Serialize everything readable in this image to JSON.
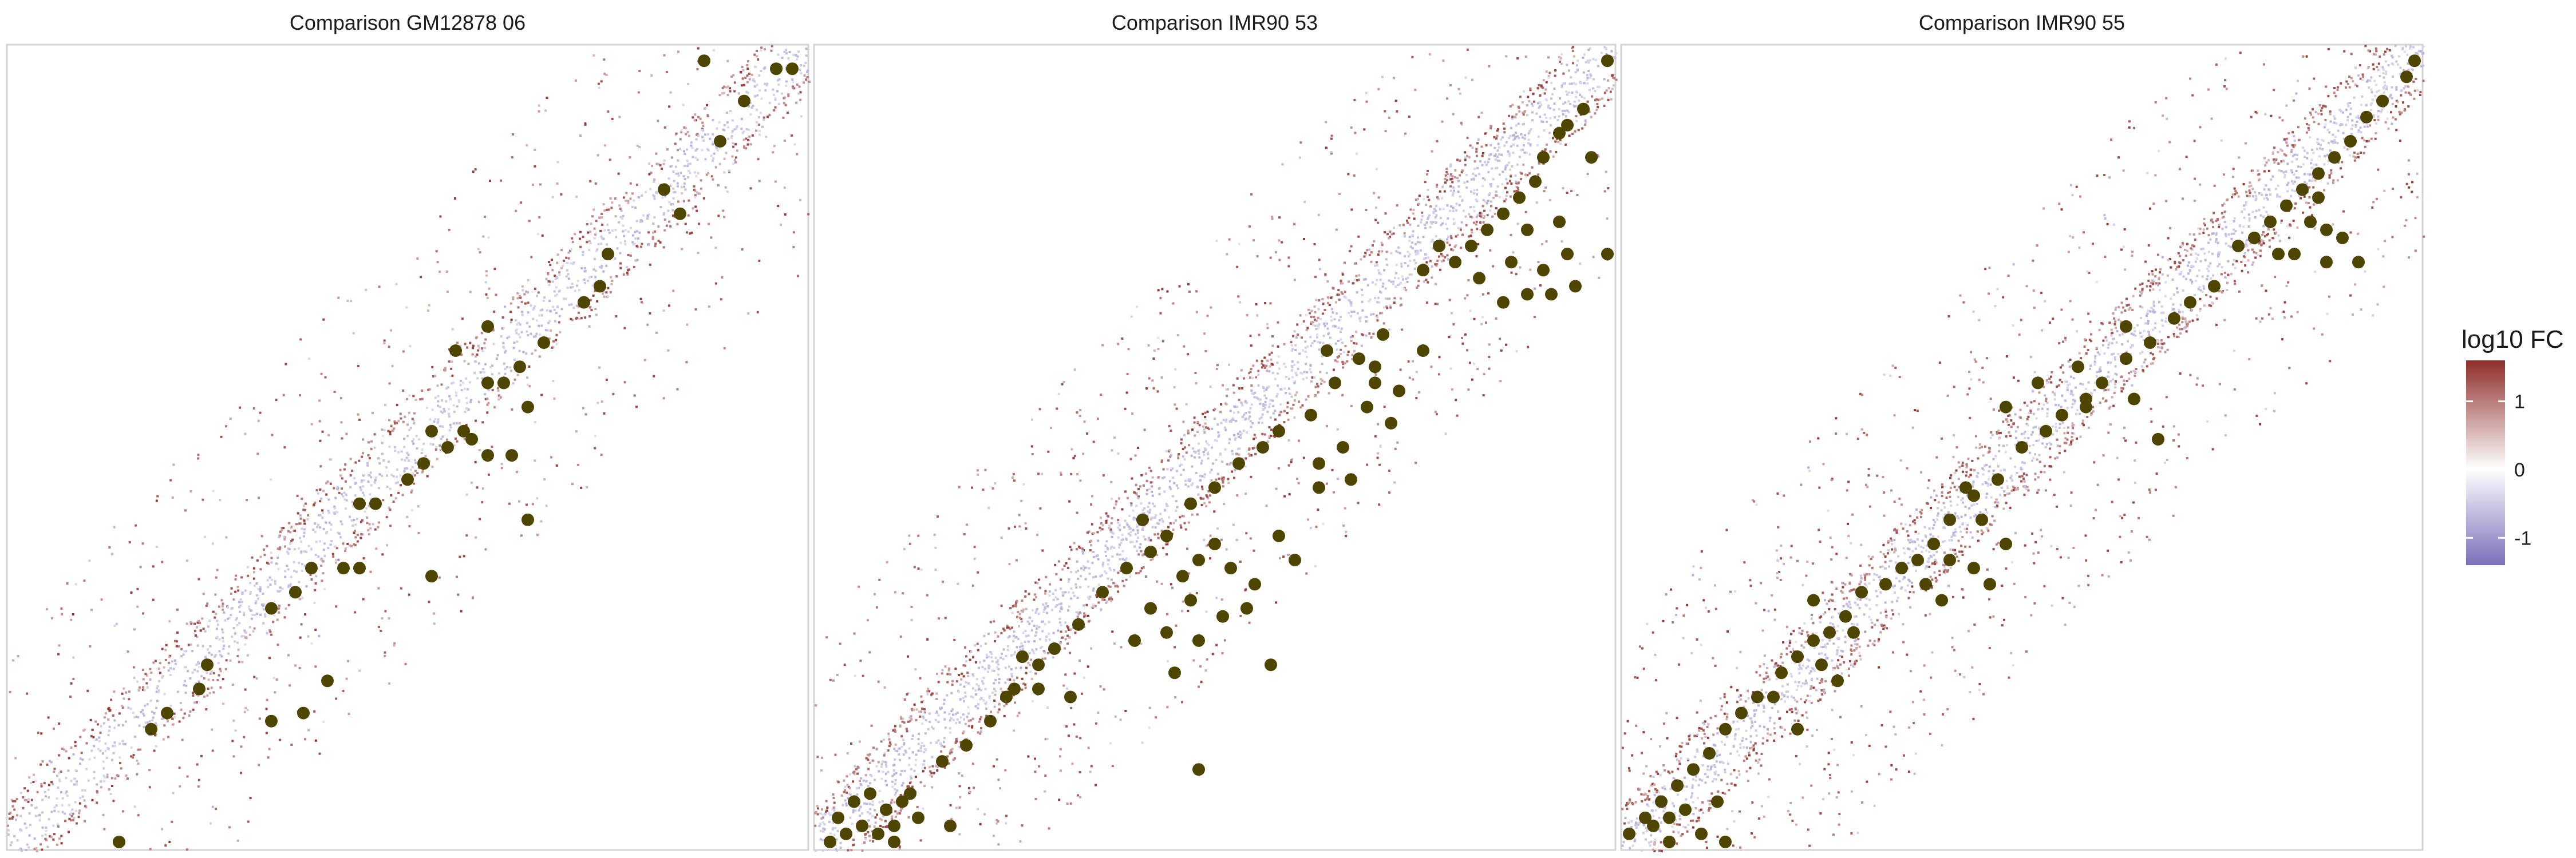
{
  "colors": {
    "low": "#7b6fb8",
    "mid": "#ffffff",
    "high": "#8e2e2a",
    "points": "#4d4500",
    "panel_border": "#d4d4d4"
  },
  "legend": {
    "title": "log10 FC",
    "ticks": [
      {
        "value": 1,
        "label": "1"
      },
      {
        "value": 0,
        "label": "0"
      },
      {
        "value": -1,
        "label": "-1"
      }
    ],
    "range": [
      -1.4,
      1.6
    ]
  },
  "chart_data": [
    {
      "type": "heatmap",
      "title": "Comparison GM12878 06",
      "grid": false,
      "fill_scale": "log10 FC, diverging blue-white-red",
      "points": [
        [
          0.87,
          0.98
        ],
        [
          0.96,
          0.97
        ],
        [
          0.92,
          0.93
        ],
        [
          0.98,
          0.97
        ],
        [
          0.89,
          0.88
        ],
        [
          0.82,
          0.82
        ],
        [
          0.84,
          0.79
        ],
        [
          0.75,
          0.74
        ],
        [
          0.74,
          0.7
        ],
        [
          0.72,
          0.68
        ],
        [
          0.67,
          0.63
        ],
        [
          0.64,
          0.6
        ],
        [
          0.62,
          0.58
        ],
        [
          0.65,
          0.55
        ],
        [
          0.6,
          0.58
        ],
        [
          0.57,
          0.52
        ],
        [
          0.53,
          0.52
        ],
        [
          0.55,
          0.5
        ],
        [
          0.58,
          0.51
        ],
        [
          0.52,
          0.48
        ],
        [
          0.5,
          0.46
        ],
        [
          0.6,
          0.49
        ],
        [
          0.63,
          0.49
        ],
        [
          0.44,
          0.43
        ],
        [
          0.46,
          0.43
        ],
        [
          0.65,
          0.41
        ],
        [
          0.38,
          0.35
        ],
        [
          0.42,
          0.35
        ],
        [
          0.36,
          0.32
        ],
        [
          0.33,
          0.3
        ],
        [
          0.44,
          0.35
        ],
        [
          0.53,
          0.34
        ],
        [
          0.25,
          0.23
        ],
        [
          0.24,
          0.2
        ],
        [
          0.2,
          0.17
        ],
        [
          0.18,
          0.15
        ],
        [
          0.4,
          0.21
        ],
        [
          0.33,
          0.16
        ],
        [
          0.37,
          0.17
        ],
        [
          0.14,
          0.01
        ],
        [
          0.56,
          0.62
        ],
        [
          0.6,
          0.65
        ]
      ]
    },
    {
      "type": "heatmap",
      "title": "Comparison IMR90 53",
      "grid": false,
      "fill_scale": "log10 FC, diverging blue-white-red",
      "points": [
        [
          0.99,
          0.98
        ],
        [
          0.96,
          0.92
        ],
        [
          0.93,
          0.89
        ],
        [
          0.91,
          0.86
        ],
        [
          0.9,
          0.83
        ],
        [
          0.88,
          0.81
        ],
        [
          0.86,
          0.79
        ],
        [
          0.84,
          0.77
        ],
        [
          0.82,
          0.75
        ],
        [
          0.8,
          0.73
        ],
        [
          0.78,
          0.75
        ],
        [
          0.76,
          0.72
        ],
        [
          0.83,
          0.71
        ],
        [
          0.87,
          0.73
        ],
        [
          0.91,
          0.72
        ],
        [
          0.94,
          0.74
        ],
        [
          0.86,
          0.68
        ],
        [
          0.89,
          0.69
        ],
        [
          0.92,
          0.69
        ],
        [
          0.95,
          0.7
        ],
        [
          0.99,
          0.74
        ],
        [
          0.97,
          0.86
        ],
        [
          0.94,
          0.9
        ],
        [
          0.89,
          0.77
        ],
        [
          0.93,
          0.78
        ],
        [
          0.71,
          0.64
        ],
        [
          0.68,
          0.61
        ],
        [
          0.65,
          0.58
        ],
        [
          0.62,
          0.54
        ],
        [
          0.58,
          0.52
        ],
        [
          0.56,
          0.5
        ],
        [
          0.53,
          0.48
        ],
        [
          0.5,
          0.45
        ],
        [
          0.47,
          0.43
        ],
        [
          0.44,
          0.39
        ],
        [
          0.42,
          0.37
        ],
        [
          0.39,
          0.35
        ],
        [
          0.36,
          0.32
        ],
        [
          0.33,
          0.28
        ],
        [
          0.3,
          0.25
        ],
        [
          0.28,
          0.23
        ],
        [
          0.25,
          0.2
        ],
        [
          0.22,
          0.16
        ],
        [
          0.19,
          0.13
        ],
        [
          0.16,
          0.11
        ],
        [
          0.12,
          0.07
        ],
        [
          0.09,
          0.05
        ],
        [
          0.06,
          0.03
        ],
        [
          0.04,
          0.02
        ],
        [
          0.02,
          0.01
        ],
        [
          0.08,
          0.02
        ],
        [
          0.1,
          0.03
        ],
        [
          0.11,
          0.06
        ],
        [
          0.13,
          0.04
        ],
        [
          0.07,
          0.07
        ],
        [
          0.05,
          0.06
        ],
        [
          0.1,
          0.01
        ],
        [
          0.03,
          0.04
        ],
        [
          0.7,
          0.58
        ],
        [
          0.69,
          0.55
        ],
        [
          0.73,
          0.57
        ],
        [
          0.72,
          0.53
        ],
        [
          0.66,
          0.5
        ],
        [
          0.63,
          0.48
        ],
        [
          0.67,
          0.46
        ],
        [
          0.5,
          0.38
        ],
        [
          0.48,
          0.36
        ],
        [
          0.46,
          0.34
        ],
        [
          0.52,
          0.35
        ],
        [
          0.47,
          0.31
        ],
        [
          0.42,
          0.3
        ],
        [
          0.44,
          0.27
        ],
        [
          0.4,
          0.26
        ],
        [
          0.45,
          0.22
        ],
        [
          0.57,
          0.23
        ],
        [
          0.28,
          0.2
        ],
        [
          0.32,
          0.19
        ],
        [
          0.48,
          0.26
        ],
        [
          0.51,
          0.29
        ],
        [
          0.54,
          0.3
        ],
        [
          0.55,
          0.33
        ],
        [
          0.41,
          0.41
        ],
        [
          0.63,
          0.45
        ],
        [
          0.58,
          0.39
        ],
        [
          0.6,
          0.36
        ],
        [
          0.76,
          0.62
        ],
        [
          0.7,
          0.6
        ],
        [
          0.24,
          0.19
        ],
        [
          0.17,
          0.03
        ],
        [
          0.48,
          0.1
        ],
        [
          0.26,
          0.24
        ],
        [
          0.64,
          0.62
        ]
      ]
    },
    {
      "type": "heatmap",
      "title": "Comparison IMR90 55",
      "grid": false,
      "fill_scale": "log10 FC, diverging blue-white-red",
      "points": [
        [
          0.99,
          0.98
        ],
        [
          0.98,
          0.96
        ],
        [
          0.95,
          0.93
        ],
        [
          0.93,
          0.91
        ],
        [
          0.91,
          0.88
        ],
        [
          0.89,
          0.86
        ],
        [
          0.87,
          0.84
        ],
        [
          0.85,
          0.82
        ],
        [
          0.83,
          0.8
        ],
        [
          0.81,
          0.78
        ],
        [
          0.79,
          0.76
        ],
        [
          0.77,
          0.75
        ],
        [
          0.86,
          0.78
        ],
        [
          0.88,
          0.77
        ],
        [
          0.9,
          0.76
        ],
        [
          0.84,
          0.74
        ],
        [
          0.88,
          0.73
        ],
        [
          0.92,
          0.73
        ],
        [
          0.87,
          0.81
        ],
        [
          0.82,
          0.74
        ],
        [
          0.74,
          0.7
        ],
        [
          0.71,
          0.68
        ],
        [
          0.69,
          0.66
        ],
        [
          0.66,
          0.63
        ],
        [
          0.63,
          0.61
        ],
        [
          0.6,
          0.58
        ],
        [
          0.58,
          0.56
        ],
        [
          0.55,
          0.54
        ],
        [
          0.53,
          0.52
        ],
        [
          0.5,
          0.5
        ],
        [
          0.47,
          0.46
        ],
        [
          0.44,
          0.44
        ],
        [
          0.41,
          0.41
        ],
        [
          0.39,
          0.38
        ],
        [
          0.37,
          0.36
        ],
        [
          0.35,
          0.35
        ],
        [
          0.33,
          0.33
        ],
        [
          0.3,
          0.32
        ],
        [
          0.28,
          0.29
        ],
        [
          0.26,
          0.27
        ],
        [
          0.24,
          0.26
        ],
        [
          0.22,
          0.24
        ],
        [
          0.2,
          0.22
        ],
        [
          0.17,
          0.19
        ],
        [
          0.15,
          0.17
        ],
        [
          0.13,
          0.15
        ],
        [
          0.11,
          0.12
        ],
        [
          0.09,
          0.1
        ],
        [
          0.07,
          0.08
        ],
        [
          0.05,
          0.06
        ],
        [
          0.03,
          0.04
        ],
        [
          0.01,
          0.02
        ],
        [
          0.04,
          0.03
        ],
        [
          0.06,
          0.04
        ],
        [
          0.08,
          0.05
        ],
        [
          0.12,
          0.06
        ],
        [
          0.1,
          0.02
        ],
        [
          0.13,
          0.01
        ],
        [
          0.06,
          0.01
        ],
        [
          0.48,
          0.55
        ],
        [
          0.52,
          0.58
        ],
        [
          0.57,
          0.6
        ],
        [
          0.63,
          0.65
        ],
        [
          0.43,
          0.45
        ],
        [
          0.45,
          0.41
        ],
        [
          0.41,
          0.36
        ],
        [
          0.38,
          0.33
        ],
        [
          0.48,
          0.38
        ],
        [
          0.44,
          0.35
        ],
        [
          0.46,
          0.33
        ],
        [
          0.29,
          0.27
        ],
        [
          0.25,
          0.23
        ],
        [
          0.27,
          0.21
        ],
        [
          0.64,
          0.56
        ],
        [
          0.67,
          0.51
        ],
        [
          0.24,
          0.31
        ],
        [
          0.19,
          0.19
        ],
        [
          0.22,
          0.15
        ],
        [
          0.58,
          0.55
        ],
        [
          0.4,
          0.31
        ]
      ]
    }
  ]
}
